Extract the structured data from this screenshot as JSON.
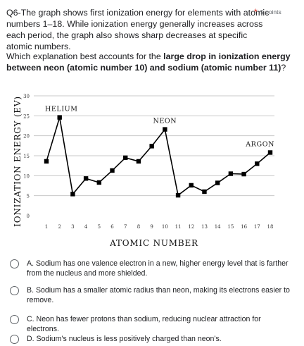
{
  "question": {
    "header": "Q6-The graph shows first ionization energy for elements with atomic numbers 1–18. While ionization energy generally increases across each period, the graph also shows sharp decreases at specific atomic numbers.",
    "required_mark": "*",
    "points": "5 points",
    "prompt_before": "Which explanation best accounts for the ",
    "prompt_bold": "large drop in ionization energy between neon (atomic number 10) and sodium (atomic number 11)",
    "prompt_after": "?"
  },
  "options": [
    {
      "label": "A. Sodium has one valence electron in a new, higher energy level that is farther from the nucleus and more shielded."
    },
    {
      "label": "B. Sodium has a smaller atomic radius than neon, making its electrons easier to remove."
    },
    {
      "label": "C. Neon has fewer protons than sodium, reducing nuclear attraction for electrons."
    },
    {
      "label": "D. Sodium's nucleus is less positively charged than neon's."
    }
  ],
  "chart_data": {
    "type": "line",
    "xlabel": "Atomic Number",
    "ylabel": "Ionization Energy (eV)",
    "x": [
      1,
      2,
      3,
      4,
      5,
      6,
      7,
      8,
      9,
      10,
      11,
      12,
      13,
      14,
      15,
      16,
      17,
      18
    ],
    "values": [
      13.6,
      24.6,
      5.4,
      9.3,
      8.3,
      11.3,
      14.5,
      13.6,
      17.4,
      21.6,
      5.1,
      7.6,
      6.0,
      8.2,
      10.5,
      10.4,
      13.0,
      15.8
    ],
    "ylim": [
      0,
      30
    ],
    "yticks": [
      "0",
      "5",
      "10",
      "15",
      "20",
      "25",
      "30"
    ],
    "xticks": [
      "1",
      "2",
      "3",
      "4",
      "5",
      "6",
      "7",
      "8",
      "9",
      "10",
      "11",
      "12",
      "13",
      "14",
      "15",
      "16",
      "17",
      "18"
    ],
    "grid": "horizontal",
    "annotations": [
      {
        "text": "Helium",
        "x": 2
      },
      {
        "text": "Neon",
        "x": 10
      },
      {
        "text": "Argon",
        "x": 18
      }
    ],
    "line_color": "#000000"
  }
}
